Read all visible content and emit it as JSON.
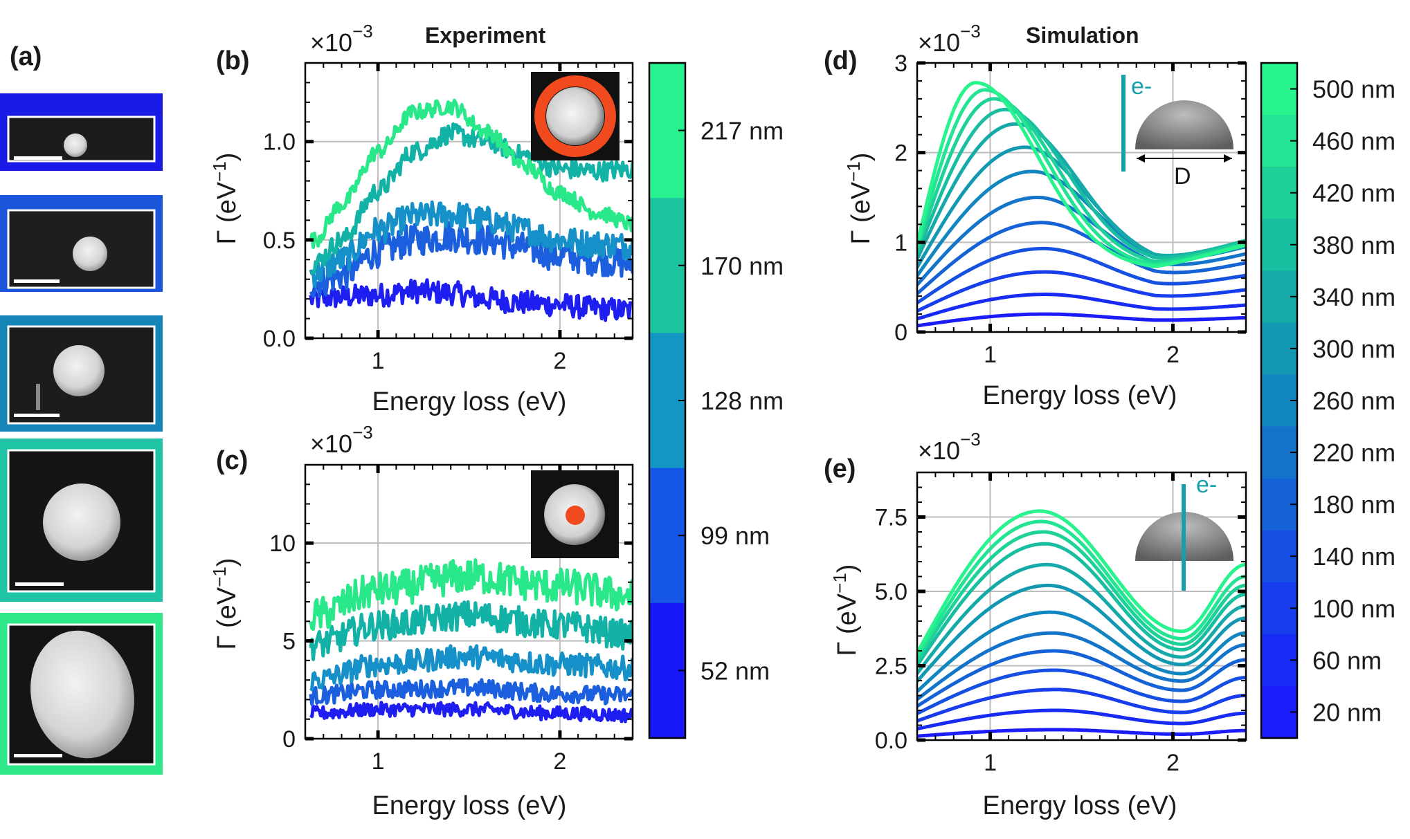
{
  "chart_data": [
    {
      "id": "b",
      "type": "line",
      "panel_label": "(b)",
      "title": "Experiment",
      "exponent": "×10",
      "exponent_power": "−3",
      "xlabel": "Energy loss (eV)",
      "ylabel": "Γ (eV",
      "ylabel_power": "−1",
      "ylabel_close": ")",
      "xlim": [
        0.6,
        2.4
      ],
      "ylim": [
        0,
        1.4
      ],
      "xticks": [
        "1",
        "2"
      ],
      "yticks": [
        "0.0",
        "0.5",
        "1.0"
      ],
      "grid": true,
      "inset": "ring",
      "colors": [
        "#1e1ef0",
        "#1b5fde",
        "#1590c8",
        "#12b2a6",
        "#28e88a"
      ],
      "series": [
        {
          "name": "52 nm",
          "x": [
            0.65,
            0.8,
            1.0,
            1.2,
            1.4,
            1.6,
            1.8,
            2.0,
            2.2,
            2.4
          ],
          "values": [
            0.2,
            0.21,
            0.22,
            0.24,
            0.23,
            0.2,
            0.18,
            0.17,
            0.15,
            0.14
          ]
        },
        {
          "name": "99 nm",
          "x": [
            0.65,
            0.8,
            1.0,
            1.2,
            1.4,
            1.6,
            1.8,
            2.0,
            2.2,
            2.4
          ],
          "values": [
            0.28,
            0.32,
            0.44,
            0.5,
            0.52,
            0.5,
            0.46,
            0.42,
            0.4,
            0.38
          ]
        },
        {
          "name": "128 nm",
          "x": [
            0.65,
            0.8,
            1.0,
            1.2,
            1.4,
            1.6,
            1.8,
            2.0,
            2.2,
            2.4
          ],
          "values": [
            0.33,
            0.4,
            0.55,
            0.62,
            0.63,
            0.6,
            0.55,
            0.5,
            0.48,
            0.47
          ]
        },
        {
          "name": "170 nm",
          "x": [
            0.65,
            0.8,
            1.0,
            1.2,
            1.4,
            1.6,
            1.8,
            2.0,
            2.2,
            2.4
          ],
          "values": [
            0.38,
            0.5,
            0.75,
            0.95,
            1.04,
            1.0,
            0.93,
            0.86,
            0.85,
            0.86
          ]
        },
        {
          "name": "217 nm",
          "x": [
            0.65,
            0.8,
            1.0,
            1.2,
            1.4,
            1.6,
            1.8,
            2.0,
            2.2,
            2.4
          ],
          "values": [
            0.5,
            0.68,
            0.95,
            1.15,
            1.18,
            1.05,
            0.88,
            0.74,
            0.64,
            0.58
          ]
        }
      ]
    },
    {
      "id": "c",
      "type": "line",
      "panel_label": "(c)",
      "title": "",
      "exponent": "×10",
      "exponent_power": "−3",
      "xlabel": "Energy loss (eV)",
      "ylabel": "Γ (eV",
      "ylabel_power": "−1",
      "ylabel_close": ")",
      "xlim": [
        0.6,
        2.4
      ],
      "ylim": [
        0,
        14
      ],
      "xticks": [
        "1",
        "2"
      ],
      "yticks": [
        "0",
        "5",
        "10"
      ],
      "grid": true,
      "inset": "dot",
      "colors": [
        "#1e1ef0",
        "#1b5fde",
        "#1590c8",
        "#12b2a6",
        "#28e88a"
      ],
      "series": [
        {
          "name": "52 nm",
          "x": [
            0.65,
            1.0,
            1.5,
            2.0,
            2.4
          ],
          "values": [
            1.3,
            1.5,
            1.5,
            1.3,
            1.2
          ]
        },
        {
          "name": "99 nm",
          "x": [
            0.65,
            1.0,
            1.5,
            2.0,
            2.4
          ],
          "values": [
            2.2,
            2.5,
            2.6,
            2.3,
            2.2
          ]
        },
        {
          "name": "128 nm",
          "x": [
            0.65,
            1.0,
            1.5,
            2.0,
            2.4
          ],
          "values": [
            3.0,
            3.8,
            4.2,
            3.8,
            3.6
          ]
        },
        {
          "name": "170 nm",
          "x": [
            0.65,
            1.0,
            1.5,
            2.0,
            2.4
          ],
          "values": [
            4.8,
            5.8,
            6.3,
            5.8,
            5.3
          ]
        },
        {
          "name": "217 nm",
          "x": [
            0.65,
            1.0,
            1.5,
            2.0,
            2.4
          ],
          "values": [
            6.3,
            7.6,
            8.3,
            7.8,
            7.3
          ]
        }
      ]
    },
    {
      "id": "d",
      "type": "line",
      "panel_label": "(d)",
      "title": "Simulation",
      "exponent": "×10",
      "exponent_power": "−3",
      "xlabel": "Energy loss (eV)",
      "ylabel": "Γ (eV",
      "ylabel_power": "−1",
      "ylabel_close": ")",
      "xlim": [
        0.6,
        2.4
      ],
      "ylim": [
        0,
        3
      ],
      "xticks": [
        "1",
        "2"
      ],
      "yticks": [
        "0",
        "1",
        "2",
        "3"
      ],
      "grid": true,
      "inset": "edge",
      "inset_text": "e-",
      "inset_dim": "D",
      "shape": "edge",
      "model": {
        "diameters": [
          20,
          60,
          100,
          140,
          180,
          220,
          260,
          300,
          340,
          380,
          420,
          460,
          500
        ],
        "peak_x": [
          1.3,
          1.3,
          1.3,
          1.29,
          1.28,
          1.26,
          1.23,
          1.19,
          1.14,
          1.08,
          1.02,
          0.97,
          0.92
        ],
        "peak_y": [
          0.2,
          0.42,
          0.67,
          0.93,
          1.22,
          1.5,
          1.79,
          2.06,
          2.32,
          2.48,
          2.6,
          2.7,
          2.78
        ],
        "end_y": [
          0.16,
          0.3,
          0.47,
          0.63,
          0.77,
          0.87,
          0.95,
          0.99,
          1.02,
          1.02,
          1.0,
          0.98,
          0.97
        ]
      }
    },
    {
      "id": "e",
      "type": "line",
      "panel_label": "(e)",
      "title": "",
      "exponent": "×10",
      "exponent_power": "−3",
      "xlabel": "Energy loss (eV)",
      "ylabel": "Γ (eV",
      "ylabel_power": "−1",
      "ylabel_close": ")",
      "xlim": [
        0.6,
        2.4
      ],
      "ylim": [
        0,
        9
      ],
      "xticks": [
        "1",
        "2"
      ],
      "yticks": [
        "0.0",
        "2.5",
        "5.0",
        "7.5"
      ],
      "grid": true,
      "inset": "center",
      "inset_text": "e-",
      "shape": "center",
      "model": {
        "diameters": [
          20,
          60,
          100,
          140,
          180,
          220,
          260,
          300,
          340,
          380,
          420,
          460,
          500
        ],
        "peak_x": [
          1.36,
          1.36,
          1.36,
          1.35,
          1.35,
          1.34,
          1.33,
          1.32,
          1.31,
          1.3,
          1.29,
          1.28,
          1.27
        ],
        "peak_y": [
          0.35,
          1.0,
          1.7,
          2.35,
          3.0,
          3.6,
          4.3,
          5.2,
          5.9,
          6.6,
          7.0,
          7.35,
          7.7
        ],
        "end_y": [
          0.32,
          0.9,
          1.5,
          2.1,
          2.7,
          3.2,
          3.6,
          4.1,
          4.5,
          4.9,
          5.2,
          5.5,
          5.9
        ]
      }
    }
  ],
  "colorbar_experiment": {
    "labels": [
      "217 nm",
      "170 nm",
      "128 nm",
      "99 nm",
      "52 nm"
    ],
    "colors": [
      "#28f28f",
      "#1cc4a0",
      "#1496c4",
      "#1656e6",
      "#1818f8"
    ]
  },
  "colorbar_simulation": {
    "labels": [
      "500 nm",
      "460 nm",
      "420 nm",
      "380 nm",
      "340 nm",
      "300 nm",
      "260 nm",
      "220 nm",
      "180 nm",
      "140 nm",
      "100 nm",
      "60 nm",
      "20 nm"
    ],
    "colors": [
      "#28f48e",
      "#22e493",
      "#1dd198",
      "#19bda0",
      "#15aaa8",
      "#1398b2",
      "#1286be",
      "#1374ca",
      "#1462d6",
      "#1650e2",
      "#173dec",
      "#182bf4",
      "#1a1cfa"
    ]
  },
  "panel_a": {
    "label": "(a)",
    "frame_colors": [
      "#1a1ae6",
      "#1a55dc",
      "#1585b8",
      "#1fc4a4",
      "#2ee88a"
    ]
  }
}
